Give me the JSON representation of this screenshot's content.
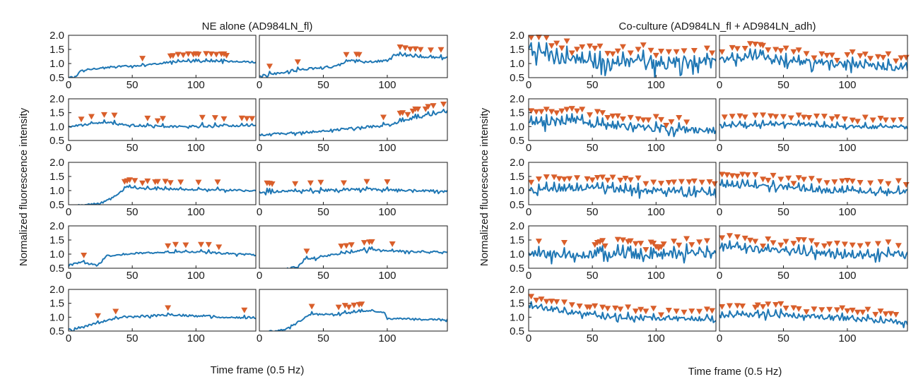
{
  "colors": {
    "trace": "#1f77b4",
    "peak": "#d95f2b",
    "axis": "#1a1a1a"
  },
  "chart_data": [
    {
      "type": "line",
      "title": "NE alone (AD984LN_fl)",
      "xlabel": "Time frame (0.5 Hz)",
      "ylabel": "Normalized fluorescence intensity",
      "xlim": [
        0,
        147
      ],
      "ylim": [
        0.5,
        2.0
      ],
      "xticks": [
        0,
        50,
        100
      ],
      "xtick_labels": [
        "0",
        "50",
        "100"
      ],
      "yticks": [
        0.5,
        1.0,
        1.5,
        2.0
      ],
      "ytick_labels": [
        "0.5",
        "1.0",
        "1.5",
        "2.0"
      ],
      "grid": false,
      "layout": "5 rows x 2 columns",
      "panels": [
        {
          "kp": [
            [
              0,
              0.5
            ],
            [
              6,
              0.55
            ],
            [
              10,
              0.75
            ],
            [
              25,
              0.85
            ],
            [
              60,
              0.95
            ],
            [
              80,
              1.05
            ],
            [
              120,
              1.08
            ],
            [
              147,
              1.05
            ]
          ],
          "noise": 0.03,
          "peaks": [
            58,
            80,
            82,
            86,
            90,
            94,
            98,
            100,
            102,
            108,
            112,
            116,
            120,
            122,
            124
          ]
        },
        {
          "kp": [
            [
              0,
              0.55
            ],
            [
              10,
              0.62
            ],
            [
              30,
              0.78
            ],
            [
              60,
              0.9
            ],
            [
              70,
              1.1
            ],
            [
              80,
              1.05
            ],
            [
              100,
              1.1
            ],
            [
              105,
              1.3
            ],
            [
              147,
              1.2
            ]
          ],
          "noise": 0.04,
          "peaks": [
            8,
            30,
            68,
            76,
            78,
            110,
            114,
            118,
            122,
            126,
            134,
            142
          ]
        },
        {
          "kp": [
            [
              0,
              1.0
            ],
            [
              30,
              1.15
            ],
            [
              45,
              1.05
            ],
            [
              80,
              1.0
            ],
            [
              147,
              1.05
            ]
          ],
          "noise": 0.04,
          "peaks": [
            10,
            18,
            28,
            36,
            62,
            70,
            74,
            105,
            115,
            122,
            136,
            140,
            144
          ]
        },
        {
          "kp": [
            [
              0,
              0.7
            ],
            [
              40,
              0.8
            ],
            [
              100,
              1.05
            ],
            [
              120,
              1.3
            ],
            [
              147,
              1.55
            ]
          ],
          "noise": 0.04,
          "peaks": [
            97,
            110,
            112,
            116,
            120,
            122,
            124,
            130,
            132,
            136,
            144
          ]
        },
        {
          "kp": [
            [
              0,
              0.45
            ],
            [
              25,
              0.55
            ],
            [
              35,
              0.75
            ],
            [
              45,
              1.1
            ],
            [
              80,
              1.05
            ],
            [
              147,
              1.0
            ]
          ],
          "noise": 0.03,
          "peaks": [
            44,
            46,
            48,
            52,
            58,
            62,
            68,
            70,
            76,
            80,
            88,
            102,
            117
          ]
        },
        {
          "kp": [
            [
              0,
              0.95
            ],
            [
              40,
              1.0
            ],
            [
              80,
              1.05
            ],
            [
              147,
              0.98
            ]
          ],
          "noise": 0.04,
          "peaks": [
            6,
            8,
            10,
            28,
            40,
            48,
            66,
            84,
            100
          ]
        },
        {
          "kp": [
            [
              0,
              0.6
            ],
            [
              10,
              0.72
            ],
            [
              22,
              0.6
            ],
            [
              30,
              0.95
            ],
            [
              60,
              1.05
            ],
            [
              100,
              1.08
            ],
            [
              147,
              0.97
            ]
          ],
          "noise": 0.03,
          "peaks": [
            12,
            78,
            84,
            92,
            104,
            110,
            118
          ]
        },
        {
          "kp": [
            [
              0,
              0.45
            ],
            [
              20,
              0.45
            ],
            [
              30,
              0.55
            ],
            [
              35,
              0.8
            ],
            [
              60,
              1.0
            ],
            [
              80,
              1.15
            ],
            [
              147,
              1.05
            ]
          ],
          "noise": 0.04,
          "peaks": [
            37,
            64,
            68,
            72,
            82,
            86,
            88,
            104
          ]
        },
        {
          "kp": [
            [
              0,
              0.55
            ],
            [
              20,
              0.75
            ],
            [
              40,
              1.0
            ],
            [
              80,
              1.08
            ],
            [
              147,
              0.97
            ]
          ],
          "noise": 0.04,
          "peaks": [
            23,
            37,
            78,
            138
          ]
        },
        {
          "kp": [
            [
              0,
              0.45
            ],
            [
              20,
              0.55
            ],
            [
              40,
              1.1
            ],
            [
              60,
              1.1
            ],
            [
              88,
              1.25
            ],
            [
              98,
              1.15
            ],
            [
              100,
              0.95
            ],
            [
              147,
              0.92
            ]
          ],
          "noise": 0.03,
          "peaks": [
            41,
            62,
            67,
            70,
            74,
            78,
            80
          ]
        }
      ]
    },
    {
      "type": "line",
      "title": "Co-culture (AD984LN_fl + AD984LN_adh)",
      "xlabel": "Time frame (0.5 Hz)",
      "ylabel": "Normalized fluorescence intensity",
      "xlim": [
        0,
        147
      ],
      "ylim": [
        0.5,
        2.0
      ],
      "xticks": [
        0,
        50,
        100
      ],
      "xtick_labels": [
        "0",
        "50",
        "100"
      ],
      "yticks": [
        0.5,
        1.0,
        1.5,
        2.0
      ],
      "ytick_labels": [
        "0.5",
        "1.0",
        "1.5",
        "2.0"
      ],
      "grid": false,
      "layout": "5 rows x 2 columns",
      "panels": [
        {
          "kp": [
            [
              0,
              1.45
            ],
            [
              20,
              1.2
            ],
            [
              50,
              1.0
            ],
            [
              100,
              0.98
            ],
            [
              147,
              1.05
            ]
          ],
          "noise": 0.2,
          "peaks": [
            2,
            8,
            14,
            18,
            22,
            26,
            30,
            34,
            38,
            42,
            48,
            52,
            56,
            62,
            66,
            70,
            74,
            80,
            86,
            90,
            96,
            100,
            104,
            110,
            116,
            122,
            130,
            140,
            144
          ]
        },
        {
          "kp": [
            [
              0,
              1.1
            ],
            [
              30,
              1.25
            ],
            [
              40,
              1.1
            ],
            [
              80,
              1.0
            ],
            [
              147,
              0.85
            ]
          ],
          "noise": 0.12,
          "peaks": [
            2,
            10,
            14,
            20,
            24,
            28,
            32,
            34,
            38,
            44,
            48,
            52,
            58,
            62,
            68,
            74,
            80,
            84,
            88,
            92,
            100,
            104,
            110,
            114,
            118,
            124,
            128,
            132,
            138,
            142,
            146
          ]
        },
        {
          "kp": [
            [
              0,
              1.1
            ],
            [
              40,
              1.2
            ],
            [
              60,
              1.0
            ],
            [
              100,
              0.92
            ],
            [
              147,
              0.85
            ]
          ],
          "noise": 0.12,
          "peaks": [
            2,
            6,
            10,
            14,
            18,
            22,
            26,
            30,
            34,
            38,
            42,
            48,
            54,
            58,
            62,
            66,
            70,
            74,
            80,
            86,
            90,
            94,
            100,
            104,
            108,
            112,
            118,
            124
          ]
        },
        {
          "kp": [
            [
              0,
              1.05
            ],
            [
              60,
              1.08
            ],
            [
              100,
              1.0
            ],
            [
              147,
              0.97
            ]
          ],
          "noise": 0.06,
          "peaks": [
            4,
            10,
            16,
            20,
            28,
            34,
            40,
            44,
            50,
            56,
            62,
            66,
            70,
            76,
            82,
            88,
            92,
            98,
            104,
            108,
            114,
            120,
            126,
            130,
            136,
            142
          ]
        },
        {
          "kp": [
            [
              0,
              1.0
            ],
            [
              40,
              1.1
            ],
            [
              80,
              1.0
            ],
            [
              147,
              0.9
            ]
          ],
          "noise": 0.1,
          "peaks": [
            2,
            8,
            14,
            20,
            24,
            28,
            32,
            38,
            46,
            50,
            54,
            58,
            62,
            66,
            72,
            76,
            80,
            86,
            92,
            98,
            104,
            110,
            114,
            120,
            126,
            130,
            136,
            142,
            146
          ]
        },
        {
          "kp": [
            [
              0,
              1.2
            ],
            [
              40,
              1.15
            ],
            [
              80,
              1.0
            ],
            [
              147,
              0.95
            ]
          ],
          "noise": 0.08,
          "peaks": [
            2,
            6,
            10,
            14,
            18,
            22,
            28,
            34,
            38,
            42,
            48,
            54,
            58,
            62,
            66,
            72,
            78,
            84,
            90,
            96,
            100,
            104,
            110,
            118,
            126,
            132,
            140,
            146
          ]
        },
        {
          "kp": [
            [
              0,
              1.0
            ],
            [
              50,
              1.0
            ],
            [
              100,
              0.95
            ],
            [
              147,
              1.05
            ]
          ],
          "noise": 0.14,
          "peaks": [
            8,
            28,
            52,
            54,
            56,
            58,
            60,
            70,
            74,
            78,
            80,
            84,
            88,
            92,
            96,
            98,
            100,
            102,
            104,
            106,
            114,
            118,
            124,
            128,
            134,
            140
          ]
        },
        {
          "kp": [
            [
              0,
              1.3
            ],
            [
              50,
              1.1
            ],
            [
              100,
              0.95
            ],
            [
              147,
              1.0
            ]
          ],
          "noise": 0.1,
          "peaks": [
            2,
            8,
            14,
            20,
            24,
            28,
            34,
            38,
            42,
            48,
            52,
            58,
            62,
            66,
            72,
            76,
            82,
            86,
            92,
            98,
            104,
            110,
            116,
            124,
            132,
            140
          ]
        },
        {
          "kp": [
            [
              0,
              1.4
            ],
            [
              30,
              1.2
            ],
            [
              60,
              1.0
            ],
            [
              147,
              0.9
            ]
          ],
          "noise": 0.07,
          "peaks": [
            2,
            6,
            10,
            14,
            18,
            22,
            28,
            34,
            40,
            46,
            48,
            52,
            58,
            62,
            68,
            72,
            78,
            84,
            88,
            92,
            98,
            104,
            110,
            116,
            122,
            128,
            134,
            140,
            144
          ]
        },
        {
          "kp": [
            [
              0,
              1.05
            ],
            [
              40,
              1.1
            ],
            [
              80,
              1.0
            ],
            [
              147,
              0.8
            ]
          ],
          "noise": 0.08,
          "peaks": [
            2,
            8,
            14,
            18,
            28,
            30,
            34,
            38,
            44,
            48,
            52,
            58,
            62,
            68,
            74,
            80,
            86,
            92,
            96,
            100,
            104,
            108,
            112,
            116,
            122,
            126,
            130,
            134,
            138
          ]
        }
      ]
    }
  ]
}
